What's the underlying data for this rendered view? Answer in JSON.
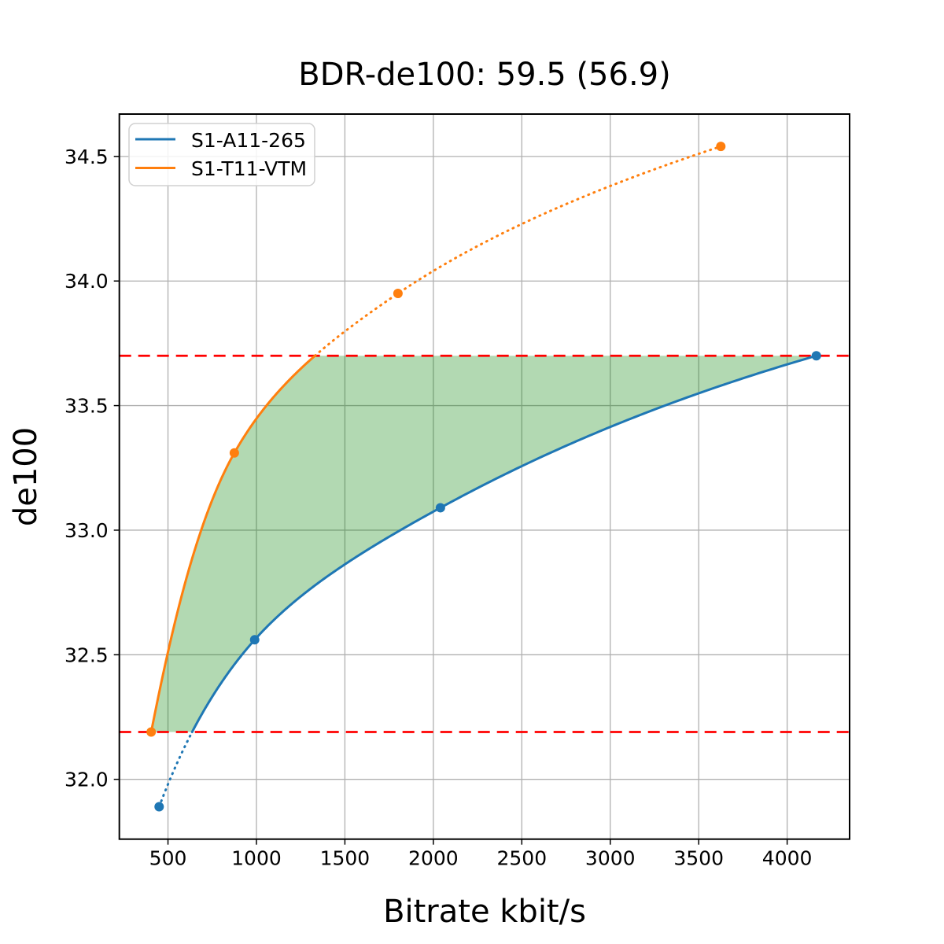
{
  "figure": {
    "title": "BDR-de100: 59.5 (56.9)",
    "xlabel": "Bitrate kbit/s",
    "ylabel": "de100"
  },
  "chart_data": {
    "type": "line",
    "title": "BDR-de100: 59.5 (56.9)",
    "xlabel": "Bitrate kbit/s",
    "ylabel": "de100",
    "bdr": 59.5,
    "bdr_secondary": 56.9,
    "xlim": [
      225,
      4353
    ],
    "ylim": [
      31.76,
      34.67
    ],
    "grid": true,
    "legend_position": "upper left",
    "xticks": [
      {
        "value": 500,
        "label": "500"
      },
      {
        "value": 1000,
        "label": "1000"
      },
      {
        "value": 1500,
        "label": "1500"
      },
      {
        "value": 2000,
        "label": "2000"
      },
      {
        "value": 2500,
        "label": "2500"
      },
      {
        "value": 3000,
        "label": "3000"
      },
      {
        "value": 3500,
        "label": "3500"
      },
      {
        "value": 4000,
        "label": "4000"
      }
    ],
    "yticks": [
      {
        "value": 32.0,
        "label": "32.0"
      },
      {
        "value": 32.5,
        "label": "32.5"
      },
      {
        "value": 33.0,
        "label": "33.0"
      },
      {
        "value": 33.5,
        "label": "33.5"
      },
      {
        "value": 34.0,
        "label": "34.0"
      },
      {
        "value": 34.5,
        "label": "34.5"
      }
    ],
    "series": [
      {
        "name": "S1-A11-265",
        "color": "#1f77b4",
        "marker": "circle",
        "points": [
          [
            450,
            31.89
          ],
          [
            990,
            32.56
          ],
          [
            2040,
            33.09
          ],
          [
            4165,
            33.7
          ]
        ]
      },
      {
        "name": "S1-T11-VTM",
        "color": "#ff7f0e",
        "marker": "circle",
        "points": [
          [
            405,
            32.19
          ],
          [
            875,
            33.31
          ],
          [
            1800,
            33.95
          ],
          [
            3625,
            34.54
          ]
        ]
      }
    ],
    "overlap_band": {
      "lower": 32.19,
      "upper": 33.7,
      "line_color": "#ff0000",
      "line_style": "dashed",
      "fill_color": "#008000",
      "fill_opacity": 0.3
    },
    "style_note": "curves solid inside overlap band, dotted outside",
    "interpolation": "pchip-logx",
    "grid_color": "#b0b0b0"
  }
}
